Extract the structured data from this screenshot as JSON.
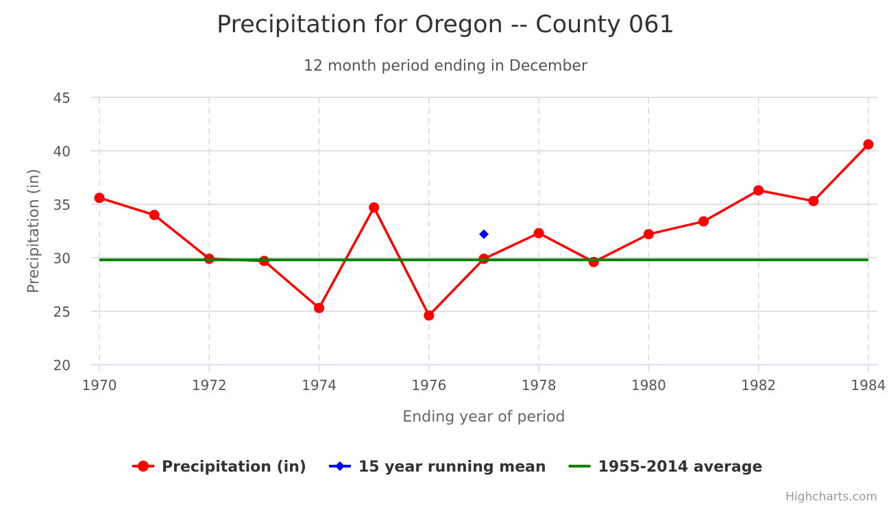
{
  "chart_data": {
    "type": "line",
    "title": "Precipitation for Oregon -- County 061",
    "subtitle": "12 month period ending in December",
    "xlabel": "Ending year of period",
    "ylabel": "Precipitation (in)",
    "xlim": [
      1970,
      1984
    ],
    "ylim": [
      20,
      45
    ],
    "x_ticks": [
      1970,
      1972,
      1974,
      1976,
      1978,
      1980,
      1982,
      1984
    ],
    "y_ticks": [
      20,
      25,
      30,
      35,
      40,
      45
    ],
    "grid": {
      "horizontal": true,
      "vertical": true,
      "vertical_style": "dashed"
    },
    "legend_position": "bottom-center",
    "credit": "Highcharts.com",
    "series": [
      {
        "name": "Precipitation (in)",
        "kind": "line",
        "marker": "circle",
        "color": "#ff0000",
        "x": [
          1970,
          1971,
          1972,
          1973,
          1974,
          1975,
          1976,
          1977,
          1978,
          1979,
          1980,
          1981,
          1982,
          1983,
          1984
        ],
        "y": [
          35.6,
          34.0,
          29.9,
          29.7,
          25.3,
          34.7,
          24.6,
          29.9,
          32.3,
          29.6,
          32.2,
          33.4,
          36.3,
          35.3,
          40.6
        ]
      },
      {
        "name": "15 year running mean",
        "kind": "scatter",
        "marker": "diamond",
        "color": "#0000ff",
        "x": [
          1977
        ],
        "y": [
          32.2
        ]
      },
      {
        "name": "1955-2014 average",
        "kind": "line",
        "marker": "none",
        "color": "#008000",
        "x": [
          1970,
          1984
        ],
        "y": [
          29.8,
          29.8
        ]
      }
    ]
  }
}
